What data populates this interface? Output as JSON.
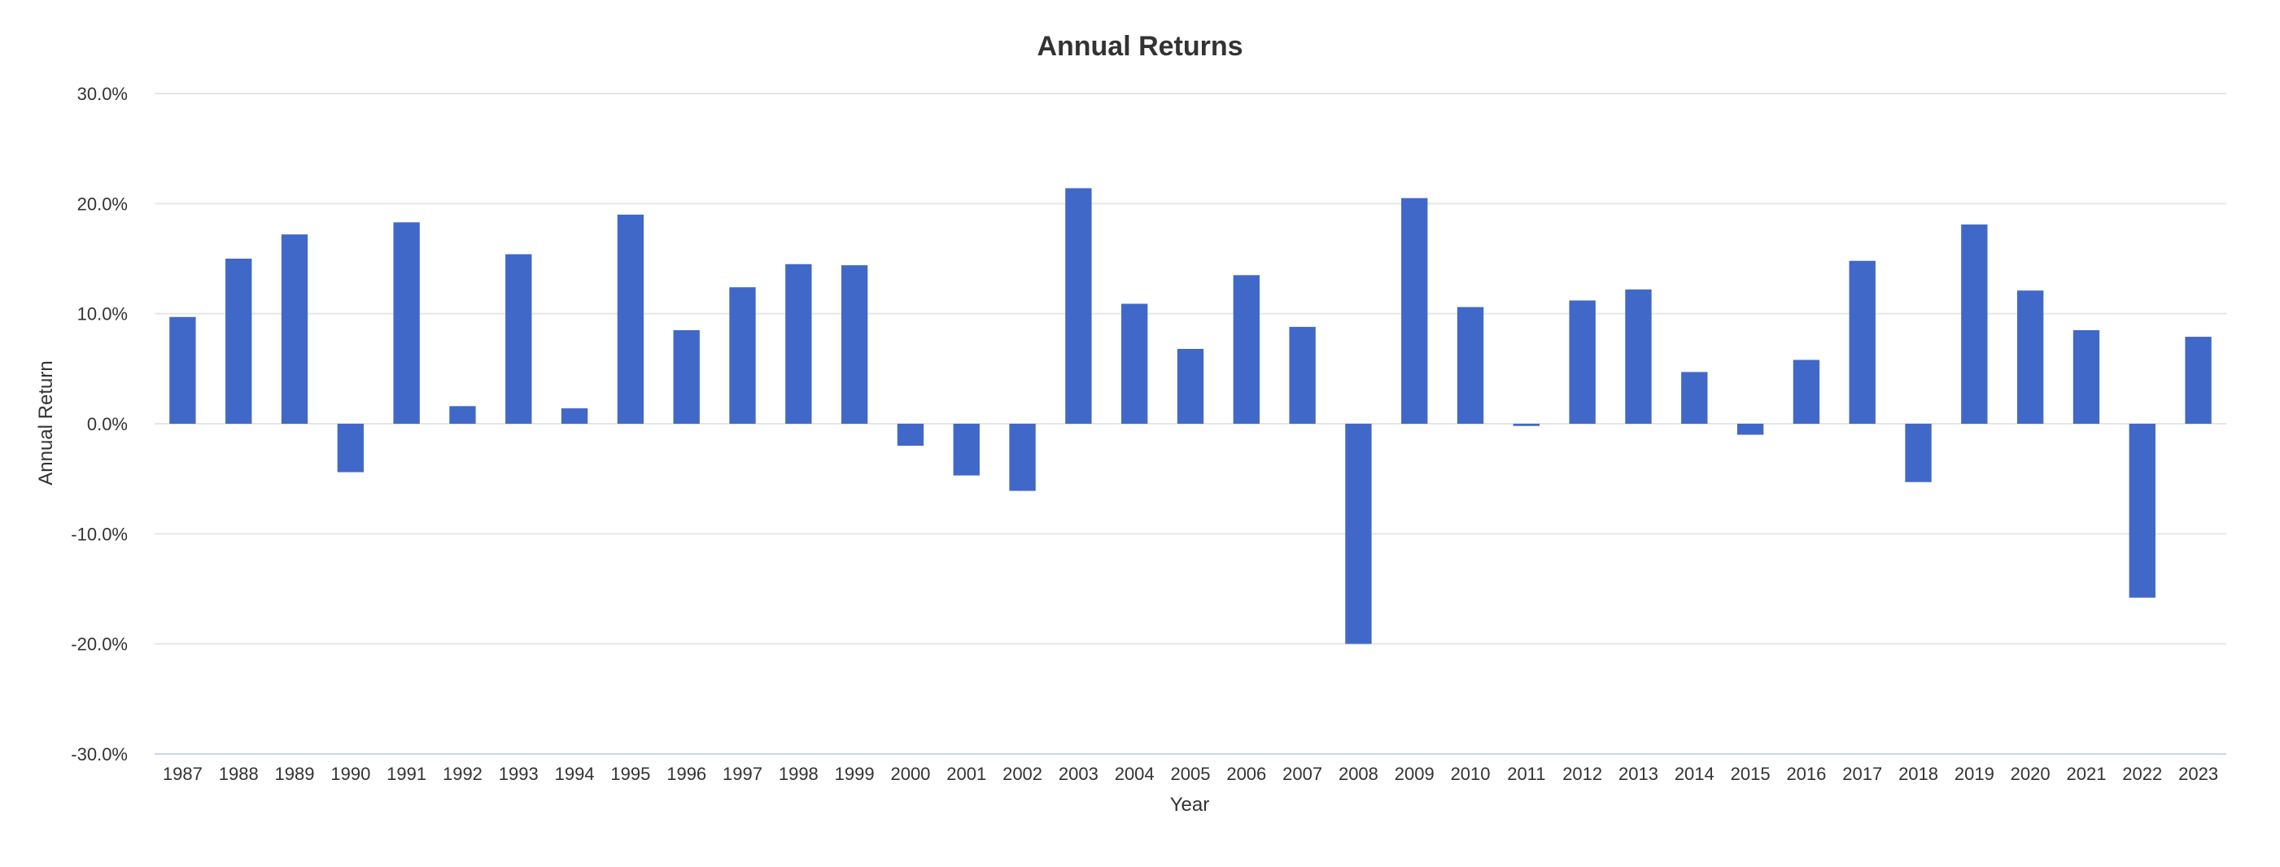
{
  "chart_data": {
    "type": "bar",
    "title": "Annual Returns",
    "xlabel": "Year",
    "ylabel": "Annual Return",
    "ylim": [
      -30,
      30
    ],
    "yticks": [
      30,
      20,
      10,
      0,
      -10,
      -20,
      -30
    ],
    "ytick_labels": [
      "30.0%",
      "20.0%",
      "10.0%",
      "0.0%",
      "-10.0%",
      "-20.0%",
      "-30.0%"
    ],
    "bar_color": "#4068c8",
    "grid": true,
    "legend": false,
    "categories": [
      "1987",
      "1988",
      "1989",
      "1990",
      "1991",
      "1992",
      "1993",
      "1994",
      "1995",
      "1996",
      "1997",
      "1998",
      "1999",
      "2000",
      "2001",
      "2002",
      "2003",
      "2004",
      "2005",
      "2006",
      "2007",
      "2008",
      "2009",
      "2010",
      "2011",
      "2012",
      "2013",
      "2014",
      "2015",
      "2016",
      "2017",
      "2018",
      "2019",
      "2020",
      "2021",
      "2022",
      "2023"
    ],
    "values": [
      9.7,
      15.0,
      17.2,
      -4.4,
      18.3,
      1.6,
      15.4,
      1.4,
      19.0,
      8.5,
      12.4,
      14.5,
      14.4,
      -2.0,
      -4.7,
      -6.1,
      21.4,
      10.9,
      6.8,
      13.5,
      8.8,
      -20.0,
      20.5,
      10.6,
      -0.2,
      11.2,
      12.2,
      4.7,
      -1.0,
      5.8,
      14.8,
      -5.3,
      18.1,
      12.1,
      8.5,
      -15.8,
      7.9
    ]
  }
}
